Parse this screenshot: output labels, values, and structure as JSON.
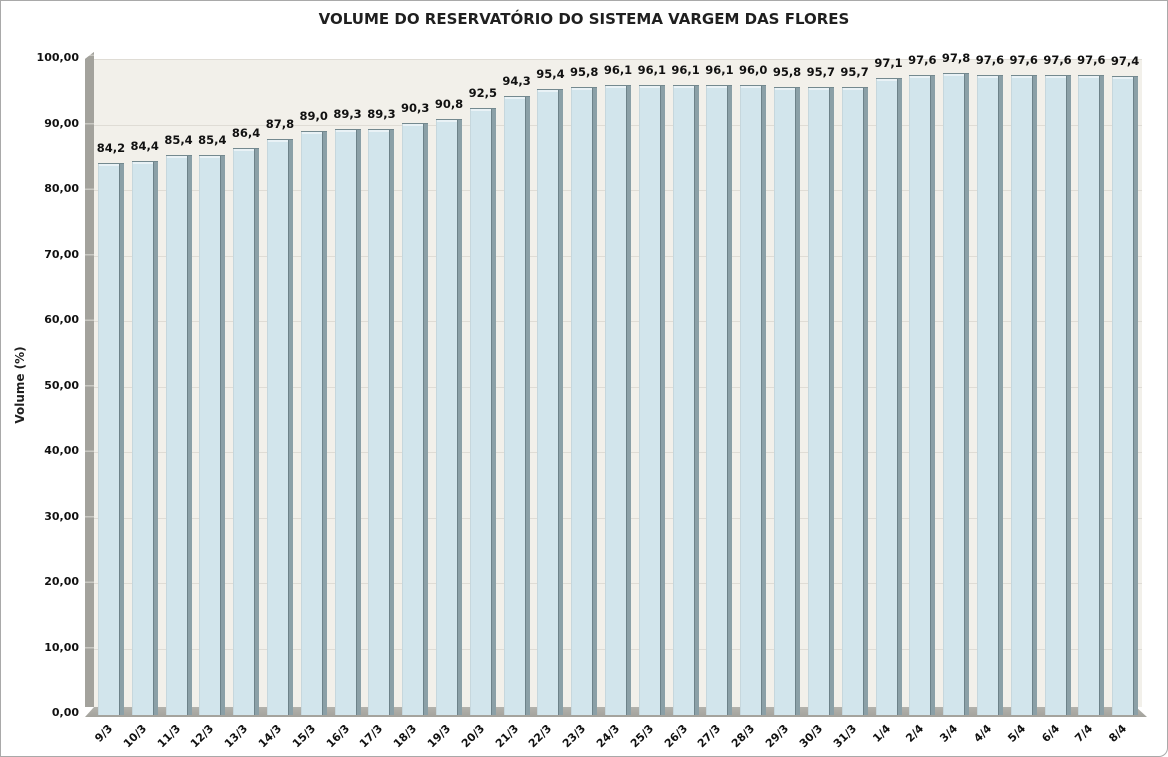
{
  "chart_data": {
    "type": "bar",
    "title": "VOLUME DO RESERVATÓRIO DO SISTEMA VARGEM DAS FLORES",
    "ylabel": "Volume (%)",
    "xlabel": "",
    "categories": [
      "9/3",
      "10/3",
      "11/3",
      "12/3",
      "13/3",
      "14/3",
      "15/3",
      "16/3",
      "17/3",
      "18/3",
      "19/3",
      "20/3",
      "21/3",
      "22/3",
      "23/3",
      "24/3",
      "25/3",
      "26/3",
      "27/3",
      "28/3",
      "29/3",
      "30/3",
      "31/3",
      "1/4",
      "2/4",
      "3/4",
      "4/4",
      "5/4",
      "6/4",
      "7/4",
      "8/4"
    ],
    "values": [
      84.2,
      84.4,
      85.4,
      85.4,
      86.4,
      87.8,
      89.0,
      89.3,
      89.3,
      90.3,
      90.8,
      92.5,
      94.3,
      95.4,
      95.8,
      96.1,
      96.1,
      96.1,
      96.1,
      96.0,
      95.8,
      95.7,
      95.7,
      97.1,
      97.6,
      97.8,
      97.6,
      97.6,
      97.6,
      97.6,
      97.4
    ],
    "value_labels": [
      "84,2",
      "84,4",
      "85,4",
      "85,4",
      "86,4",
      "87,8",
      "89,0",
      "89,3",
      "89,3",
      "90,3",
      "90,8",
      "92,5",
      "94,3",
      "95,4",
      "95,8",
      "96,1",
      "96,1",
      "96,1",
      "96,1",
      "96,0",
      "95,8",
      "95,7",
      "95,7",
      "97,1",
      "97,6",
      "97,8",
      "97,6",
      "97,6",
      "97,6",
      "97,6",
      "97,4"
    ],
    "ylim": [
      0,
      100
    ],
    "ytick_step": 10,
    "ytick_labels": [
      "0,00",
      "10,00",
      "20,00",
      "30,00",
      "40,00",
      "50,00",
      "60,00",
      "70,00",
      "80,00",
      "90,00",
      "100,00"
    ],
    "grid": true,
    "legend": "none",
    "style_3d": true,
    "colors": {
      "bar_fill": "#d2e5ec",
      "bar_side": "#8ba0a7",
      "bar_edge": "#74898f",
      "bar_highlight": "#e9f2f6",
      "plot_bg": "#f2f0ea",
      "gridline": "#dfdcd5",
      "wall_floor": "#a3a29c",
      "text": "#1f1f1f"
    }
  }
}
